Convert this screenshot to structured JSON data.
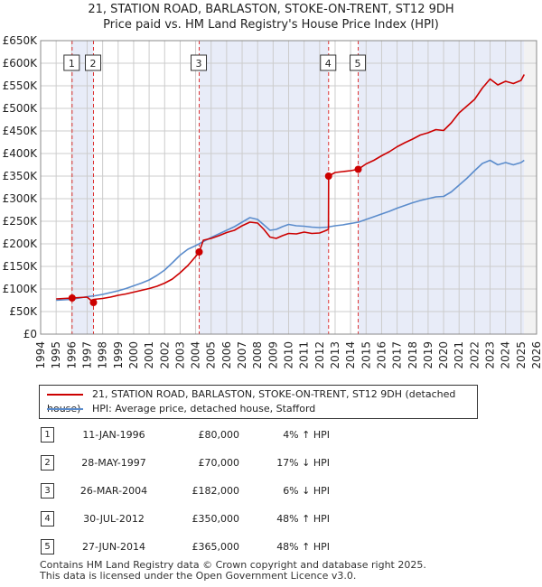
{
  "title": "21, STATION ROAD, BARLASTON, STOKE-ON-TRENT, ST12 9DH",
  "subtitle": "Price paid vs. HM Land Registry's House Price Index (HPI)",
  "legend": {
    "property_label": "21, STATION ROAD, BARLASTON, STOKE-ON-TRENT, ST12 9DH (detached house)",
    "hpi_label": "HPI: Average price, detached house, Stafford"
  },
  "colors": {
    "property": "#cc0000",
    "hpi": "#5b8ccc",
    "shade": "#e8ecf8",
    "grid": "#cccccc"
  },
  "sales": [
    {
      "num": "1",
      "date": "11-JAN-1996",
      "price": "£80,000",
      "hpi": "4% ↑ HPI"
    },
    {
      "num": "2",
      "date": "28-MAY-1997",
      "price": "£70,000",
      "hpi": "17% ↓ HPI"
    },
    {
      "num": "3",
      "date": "26-MAR-2004",
      "price": "£182,000",
      "hpi": "6% ↓ HPI"
    },
    {
      "num": "4",
      "date": "30-JUL-2012",
      "price": "£350,000",
      "hpi": "48% ↑ HPI"
    },
    {
      "num": "5",
      "date": "27-JUN-2014",
      "price": "£365,000",
      "hpi": "48% ↑ HPI"
    }
  ],
  "footer": {
    "line1": "Contains HM Land Registry data © Crown copyright and database right 2025.",
    "line2": "This data is licensed under the Open Government Licence v3.0."
  },
  "chart_data": {
    "type": "line",
    "xlim": [
      1994,
      2026
    ],
    "ylim": [
      0,
      650000
    ],
    "grid": true,
    "legend_position": "below",
    "x_ticks": [
      "1994",
      "1995",
      "1996",
      "1997",
      "1998",
      "1999",
      "2000",
      "2001",
      "2002",
      "2003",
      "2004",
      "2005",
      "2006",
      "2007",
      "2008",
      "2009",
      "2010",
      "2011",
      "2012",
      "2013",
      "2014",
      "2015",
      "2016",
      "2017",
      "2018",
      "2019",
      "2020",
      "2021",
      "2022",
      "2023",
      "2024",
      "2025",
      "2026"
    ],
    "y_ticks": [
      {
        "value": 0,
        "label": "£0"
      },
      {
        "value": 50000,
        "label": "£50K"
      },
      {
        "value": 100000,
        "label": "£100K"
      },
      {
        "value": 150000,
        "label": "£150K"
      },
      {
        "value": 200000,
        "label": "£200K"
      },
      {
        "value": 250000,
        "label": "£250K"
      },
      {
        "value": 300000,
        "label": "£300K"
      },
      {
        "value": 350000,
        "label": "£350K"
      },
      {
        "value": 400000,
        "label": "£400K"
      },
      {
        "value": 450000,
        "label": "£450K"
      },
      {
        "value": 500000,
        "label": "£500K"
      },
      {
        "value": 550000,
        "label": "£550K"
      },
      {
        "value": 600000,
        "label": "£600K"
      },
      {
        "value": 650000,
        "label": "£650K"
      }
    ],
    "sale_markers": [
      {
        "label": "1",
        "x": 1996.03,
        "y": 80000
      },
      {
        "label": "2",
        "x": 1997.41,
        "y": 70000
      },
      {
        "label": "3",
        "x": 2004.23,
        "y": 182000
      },
      {
        "label": "4",
        "x": 2012.58,
        "y": 350000
      },
      {
        "label": "5",
        "x": 2014.49,
        "y": 365000
      }
    ],
    "series": [
      {
        "name": "21, STATION ROAD, BARLASTON, STOKE-ON-TRENT, ST12 9DH (detached house)",
        "x": [
          1995.0,
          1995.5,
          1996.03,
          1996.5,
          1997.0,
          1997.41,
          1997.42,
          1998.0,
          1998.5,
          1999.0,
          1999.5,
          2000.0,
          2000.5,
          2001.0,
          2001.5,
          2002.0,
          2002.5,
          2003.0,
          2003.5,
          2004.0,
          2004.23,
          2004.5,
          2005.0,
          2005.5,
          2006.0,
          2006.5,
          2007.0,
          2007.5,
          2008.0,
          2008.4,
          2008.8,
          2009.2,
          2009.6,
          2010.0,
          2010.5,
          2011.0,
          2011.5,
          2012.0,
          2012.3,
          2012.57,
          2012.58,
          2013.0,
          2013.5,
          2014.0,
          2014.49,
          2015.0,
          2015.5,
          2016.0,
          2016.5,
          2017.0,
          2017.5,
          2018.0,
          2018.5,
          2019.0,
          2019.5,
          2020.0,
          2020.5,
          2021.0,
          2021.5,
          2022.0,
          2022.5,
          2023.0,
          2023.5,
          2024.0,
          2024.5,
          2025.0,
          2025.2
        ],
        "y": [
          78000,
          79000,
          80000,
          81000,
          82000,
          70000,
          77000,
          79000,
          82000,
          86000,
          89000,
          93000,
          97000,
          101000,
          106000,
          113000,
          122000,
          136000,
          152000,
          172000,
          182000,
          208000,
          212000,
          218000,
          225000,
          230000,
          240000,
          248000,
          246000,
          232000,
          215000,
          212000,
          218000,
          223000,
          222000,
          226000,
          223000,
          224000,
          228000,
          232000,
          350000,
          358000,
          360000,
          362000,
          365000,
          377000,
          385000,
          395000,
          404000,
          415000,
          424000,
          432000,
          441000,
          446000,
          453000,
          451000,
          468000,
          490000,
          505000,
          520000,
          545000,
          565000,
          552000,
          560000,
          555000,
          562000,
          575000
        ]
      },
      {
        "name": "HPI: Average price, detached house, Stafford",
        "x": [
          1995.0,
          1995.5,
          1996.0,
          1996.5,
          1997.0,
          1997.5,
          1998.0,
          1998.5,
          1999.0,
          1999.5,
          2000.0,
          2000.5,
          2001.0,
          2001.5,
          2002.0,
          2002.5,
          2003.0,
          2003.5,
          2004.0,
          2004.5,
          2005.0,
          2005.5,
          2006.0,
          2006.5,
          2007.0,
          2007.5,
          2008.0,
          2008.4,
          2008.8,
          2009.2,
          2009.6,
          2010.0,
          2010.5,
          2011.0,
          2011.5,
          2012.0,
          2012.5,
          2013.0,
          2013.5,
          2014.0,
          2014.5,
          2015.0,
          2015.5,
          2016.0,
          2016.5,
          2017.0,
          2017.5,
          2018.0,
          2018.5,
          2019.0,
          2019.5,
          2020.0,
          2020.5,
          2021.0,
          2021.5,
          2022.0,
          2022.5,
          2023.0,
          2023.5,
          2024.0,
          2024.5,
          2025.0,
          2025.2
        ],
        "y": [
          75000,
          76000,
          77000,
          80000,
          83000,
          85000,
          88000,
          92000,
          96000,
          101000,
          107000,
          113000,
          120000,
          130000,
          142000,
          158000,
          175000,
          188000,
          196000,
          205000,
          214000,
          222000,
          230000,
          238000,
          248000,
          258000,
          254000,
          242000,
          230000,
          232000,
          238000,
          243000,
          240000,
          239000,
          237000,
          236000,
          237000,
          240000,
          242000,
          245000,
          248000,
          254000,
          260000,
          266000,
          272000,
          279000,
          285000,
          291000,
          296000,
          300000,
          304000,
          305000,
          315000,
          330000,
          345000,
          362000,
          378000,
          385000,
          375000,
          380000,
          375000,
          380000,
          385000
        ]
      }
    ]
  }
}
